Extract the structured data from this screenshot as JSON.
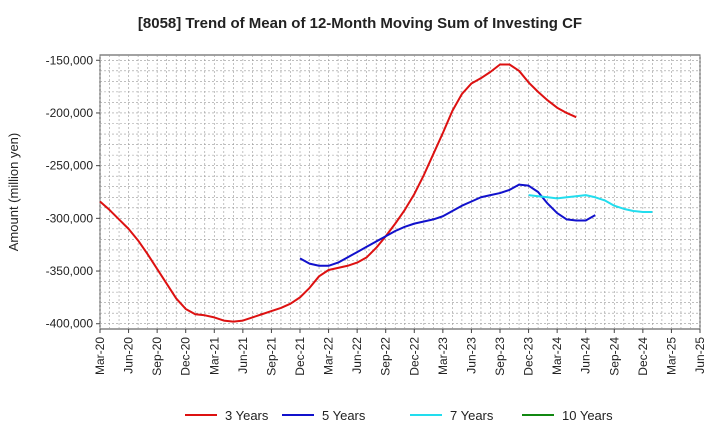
{
  "chart_data": {
    "type": "line",
    "title": "[8058]  Trend of Mean of 12-Month Moving Sum of Investing CF",
    "xlabel": "",
    "ylabel": "Amount (million yen)",
    "ylim": [
      -405000,
      -145000
    ],
    "yticks": [
      -150000,
      -200000,
      -250000,
      -300000,
      -350000,
      -400000
    ],
    "ytick_labels": [
      "-150,000",
      "-200,000",
      "-250,000",
      "-300,000",
      "-350,000",
      "-400,000"
    ],
    "x_start_month": "2020-03",
    "x_end_month": "2025-06",
    "x_tick_labels": [
      "Mar-20",
      "Jun-20",
      "Sep-20",
      "Dec-20",
      "Mar-21",
      "Jun-21",
      "Sep-21",
      "Dec-21",
      "Mar-22",
      "Jun-22",
      "Sep-22",
      "Dec-22",
      "Mar-23",
      "Jun-23",
      "Sep-23",
      "Dec-23",
      "Mar-24",
      "Jun-24",
      "Sep-24",
      "Dec-24",
      "Mar-25",
      "Jun-25"
    ],
    "grid": true,
    "legend_position": "bottom",
    "series": [
      {
        "name": "3 Years",
        "color": "#dd1111",
        "start_month": "2020-03",
        "values": [
          -284000,
          -292000,
          -301000,
          -310000,
          -321000,
          -334000,
          -348000,
          -362000,
          -376000,
          -386000,
          -391000,
          -392000,
          -394000,
          -397000,
          -398000,
          -397000,
          -394000,
          -391000,
          -388000,
          -385000,
          -381000,
          -375000,
          -366000,
          -355000,
          -349000,
          -347000,
          -345000,
          -342000,
          -337000,
          -328000,
          -317000,
          -305000,
          -292000,
          -277000,
          -259000,
          -239000,
          -219000,
          -198000,
          -182000,
          -172000,
          -167000,
          -161000,
          -154000,
          -154000,
          -160000,
          -171000,
          -180000,
          -188000,
          -195000,
          -200000,
          -204000
        ]
      },
      {
        "name": "5 Years",
        "color": "#1111cc",
        "start_month": "2021-12",
        "values": [
          -338000,
          -343000,
          -345000,
          -345000,
          -342000,
          -337000,
          -332000,
          -327000,
          -322000,
          -317000,
          -312000,
          -308000,
          -305000,
          -303000,
          -301000,
          -298000,
          -293000,
          -288000,
          -284000,
          -280000,
          -278000,
          -276000,
          -273000,
          -268000,
          -269000,
          -275000,
          -286000,
          -295000,
          -301000,
          -302000,
          -302000,
          -297000
        ]
      },
      {
        "name": "7 Years",
        "color": "#22ddee",
        "start_month": "2023-12",
        "values": [
          -278000,
          -279000,
          -280000,
          -281000,
          -280000,
          -279000,
          -278000,
          -280000,
          -283000,
          -288000,
          -291000,
          -293000,
          -294000,
          -294000
        ]
      },
      {
        "name": "10 Years",
        "color": "#118811",
        "start_month": "2020-03",
        "values": []
      }
    ]
  }
}
